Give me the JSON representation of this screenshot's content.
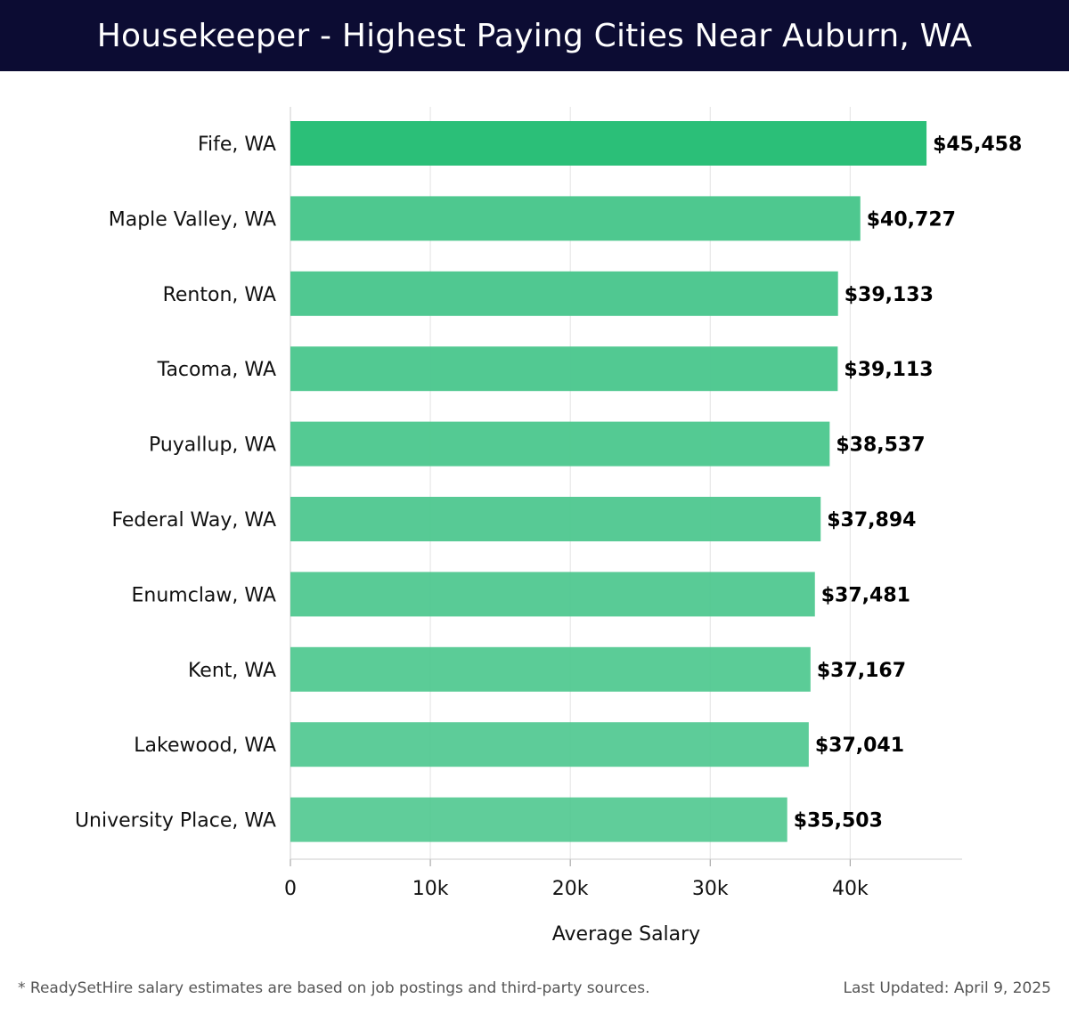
{
  "header": {
    "title": "Housekeeper - Highest Paying Cities Near Auburn, WA"
  },
  "footer": {
    "note": "* ReadySetHire salary estimates are based on job postings and third-party sources.",
    "updated": "Last Updated: April 9, 2025"
  },
  "chart_data": {
    "type": "bar",
    "orientation": "horizontal",
    "title": "Housekeeper - Highest Paying Cities Near Auburn, WA",
    "xlabel": "Average Salary",
    "ylabel": "",
    "xlim": [
      0,
      48000
    ],
    "xticks": [
      {
        "value": 0,
        "label": "0"
      },
      {
        "value": 10000,
        "label": "10k"
      },
      {
        "value": 20000,
        "label": "20k"
      },
      {
        "value": 30000,
        "label": "30k"
      },
      {
        "value": 40000,
        "label": "40k"
      }
    ],
    "grid": true,
    "bar_color_top": "#2bbf78",
    "bar_color": "#4cc78e",
    "categories": [
      "Fife, WA",
      "Maple Valley, WA",
      "Renton, WA",
      "Tacoma, WA",
      "Puyallup, WA",
      "Federal Way, WA",
      "Enumclaw, WA",
      "Kent, WA",
      "Lakewood, WA",
      "University Place, WA"
    ],
    "values": [
      45458,
      40727,
      39133,
      39113,
      38537,
      37894,
      37481,
      37167,
      37041,
      35503
    ],
    "value_labels": [
      "$45,458",
      "$40,727",
      "$39,133",
      "$39,113",
      "$38,537",
      "$37,894",
      "$37,481",
      "$37,167",
      "$37,041",
      "$35,503"
    ]
  }
}
